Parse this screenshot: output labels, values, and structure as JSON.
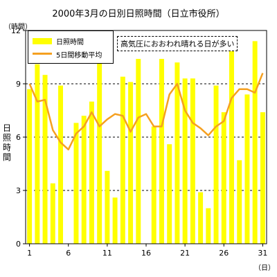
{
  "chart_data": {
    "type": "bar+line",
    "title": "2000年3月の日別日照時間（日立市役所）",
    "y_unit": "（時間）",
    "x_unit": "（日）",
    "ylabel": "日照時間",
    "ylim": [
      0,
      12
    ],
    "y_ticks": [
      "0",
      "3",
      "6",
      "9",
      "12"
    ],
    "x_tick_days": [
      1,
      6,
      11,
      16,
      21,
      26,
      31
    ],
    "x_tick_labels": [
      "1",
      "6",
      "11",
      "16",
      "21",
      "26",
      "31"
    ],
    "grid": "dashed horizontal at 3, 6, 9",
    "legend_placement": "top-left",
    "annotation": "高気圧におおわれ晴れる日が多い",
    "series": [
      {
        "name": "日照時間",
        "kind": "bar",
        "color": "#ffff00",
        "values": [
          8.7,
          10.1,
          9.5,
          3.4,
          8.9,
          0,
          6.8,
          7.2,
          8.0,
          10.6,
          4.1,
          2.6,
          9.4,
          9.1,
          10.4,
          0,
          6.6,
          10.4,
          5.6,
          10.2,
          9.3,
          9.3,
          2.9,
          2.0,
          8.9,
          7.4,
          11.1,
          4.7,
          8.4,
          11.4,
          7.4
        ]
      },
      {
        "name": "5日間移動平均",
        "kind": "line",
        "color": "#f5a020",
        "values": [
          9.0,
          8.0,
          8.1,
          6.4,
          5.7,
          5.3,
          6.2,
          6.6,
          7.4,
          6.6,
          7.0,
          7.3,
          7.2,
          6.3,
          7.1,
          7.3,
          6.6,
          6.6,
          8.4,
          9.0,
          7.5,
          6.8,
          6.5,
          6.1,
          6.6,
          6.9,
          8.2,
          8.7,
          8.7,
          8.5,
          9.6
        ]
      }
    ]
  }
}
